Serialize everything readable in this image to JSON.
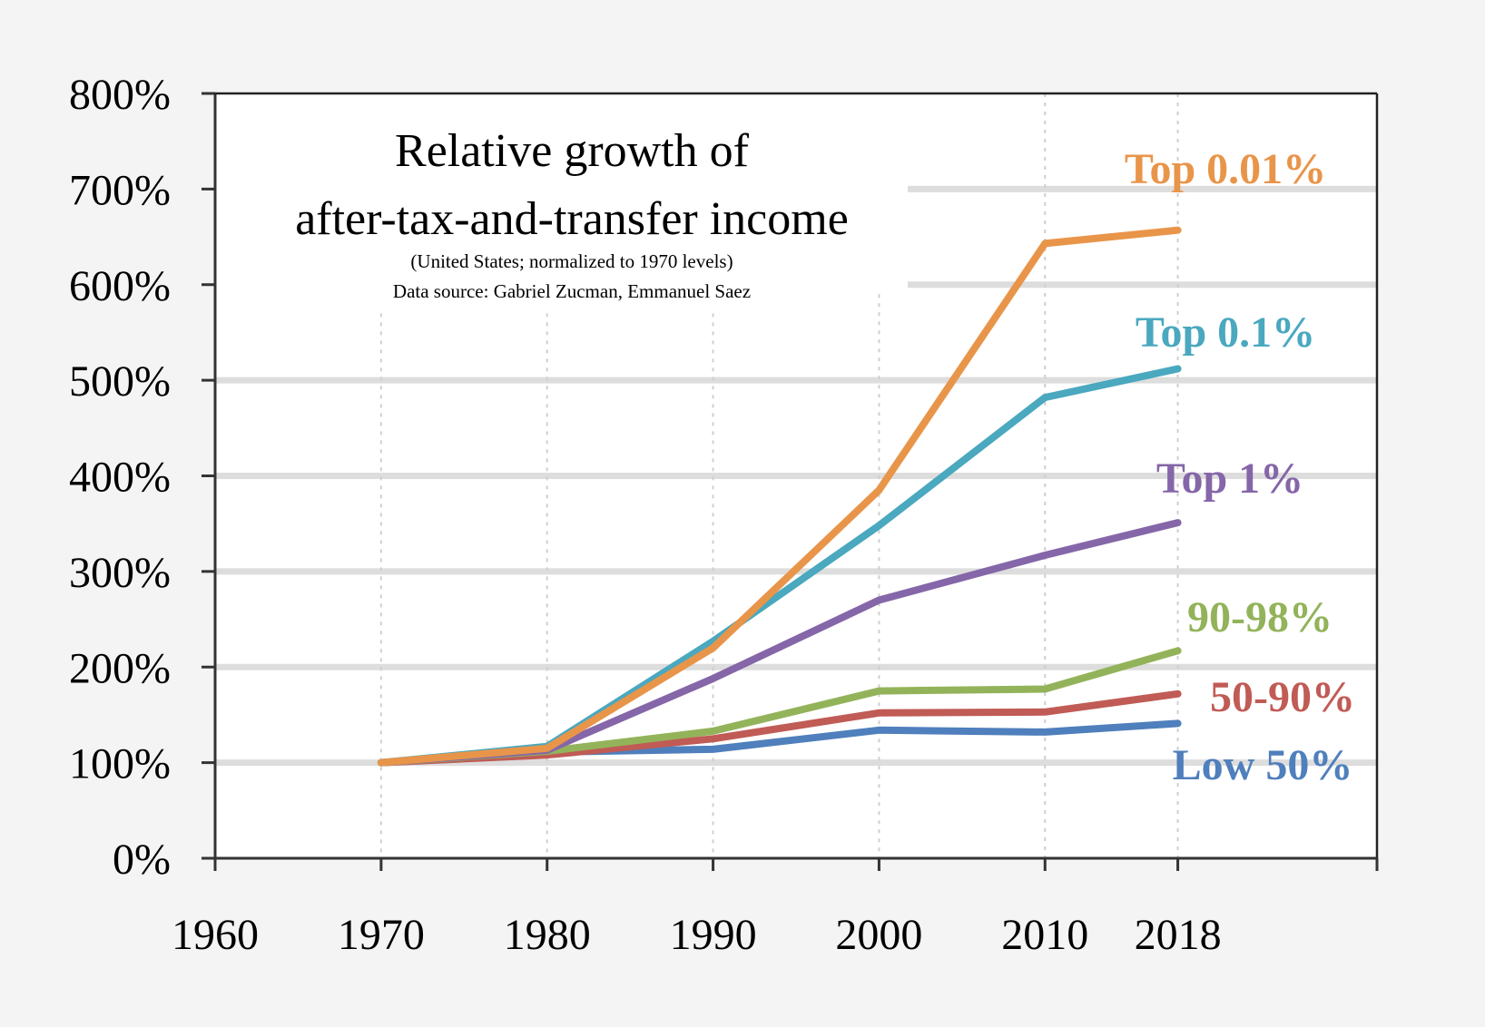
{
  "chart_data": {
    "type": "line",
    "title": [
      "Relative growth of",
      "after-tax-and-transfer income"
    ],
    "subtitle": [
      "(United States;  normalized to 1970 levels)",
      "Data source: Gabriel Zucman, Emmanuel Saez"
    ],
    "xlabel": "",
    "ylabel": "",
    "xlim": [
      1960,
      2030
    ],
    "ylim": [
      0,
      800
    ],
    "x_ticks": [
      {
        "value": 1960,
        "label": "1960"
      },
      {
        "value": 1970,
        "label": "1970"
      },
      {
        "value": 1980,
        "label": "1980"
      },
      {
        "value": 1990,
        "label": "1990"
      },
      {
        "value": 2000,
        "label": "2000"
      },
      {
        "value": 2010,
        "label": "2010"
      },
      {
        "value": 2018,
        "label": "2018"
      }
    ],
    "y_ticks": [
      {
        "value": 0,
        "label": "0%"
      },
      {
        "value": 100,
        "label": "100%"
      },
      {
        "value": 200,
        "label": "200%"
      },
      {
        "value": 300,
        "label": "300%"
      },
      {
        "value": 400,
        "label": "400%"
      },
      {
        "value": 500,
        "label": "500%"
      },
      {
        "value": 600,
        "label": "600%"
      },
      {
        "value": 700,
        "label": "700%"
      },
      {
        "value": 800,
        "label": "800%"
      }
    ],
    "x": [
      1970,
      1980,
      1990,
      2000,
      2010,
      2018
    ],
    "grid": {
      "horizontal": true,
      "vertical_dotted": true
    },
    "legend": "inline labels at line ends (right)",
    "series": [
      {
        "name": "Top 0.01%",
        "color": "#e8954a",
        "values": [
          100,
          115,
          220,
          385,
          643,
          657
        ]
      },
      {
        "name": "Top 0.1%",
        "color": "#4aa8bf",
        "values": [
          100,
          117,
          227,
          348,
          482,
          512
        ]
      },
      {
        "name": "Top 1%",
        "color": "#8566a8",
        "values": [
          100,
          113,
          188,
          270,
          317,
          351
        ]
      },
      {
        "name": "90-98%",
        "color": "#93b35a",
        "values": [
          100,
          112,
          133,
          175,
          177,
          217
        ]
      },
      {
        "name": "50-90%",
        "color": "#c05b55",
        "values": [
          100,
          108,
          125,
          152,
          153,
          172
        ]
      },
      {
        "name": "Low 50%",
        "color": "#4f7fbc",
        "values": [
          100,
          111,
          114,
          134,
          132,
          141
        ]
      }
    ]
  }
}
